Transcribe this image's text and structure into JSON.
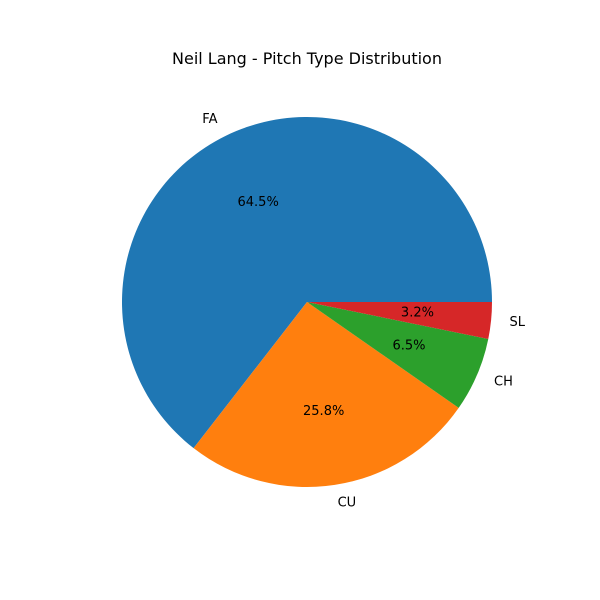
{
  "chart_data": {
    "type": "pie",
    "title": "Neil Lang - Pitch Type Distribution",
    "slices": [
      {
        "label": "FA",
        "value": 64.5,
        "pct_label": "64.5%",
        "color": "#1f77b4"
      },
      {
        "label": "CU",
        "value": 25.8,
        "pct_label": "25.8%",
        "color": "#ff7f0e"
      },
      {
        "label": "CH",
        "value": 6.5,
        "pct_label": "6.5%",
        "color": "#2ca02c"
      },
      {
        "label": "SL",
        "value": 3.2,
        "pct_label": "3.2%",
        "color": "#d62728"
      }
    ],
    "start_angle_deg": 0,
    "direction": "counterclockwise"
  }
}
